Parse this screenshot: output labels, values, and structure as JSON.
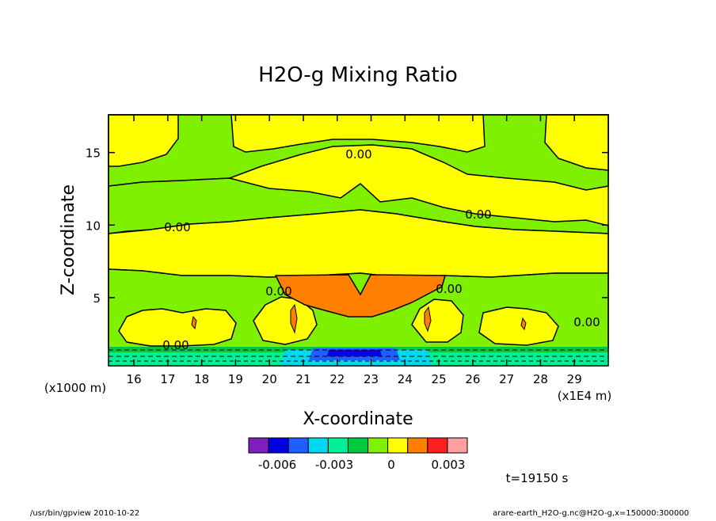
{
  "chart_data": {
    "type": "heatmap",
    "title": "H2O-g Mixing Ratio",
    "xlabel": "X-coordinate",
    "ylabel": "Z-coordinate",
    "x_unit_label": "(x1E4 m)",
    "y_unit_label": "(x1000 m)",
    "xlim": [
      15.25,
      30.0
    ],
    "ylim": [
      0.3,
      17.6
    ],
    "x_ticks": [
      "16",
      "17",
      "18",
      "19",
      "20",
      "21",
      "22",
      "23",
      "24",
      "25",
      "26",
      "27",
      "28",
      "29"
    ],
    "y_ticks": [
      "5",
      "10",
      "15"
    ],
    "x_tick_values": [
      16,
      17,
      18,
      19,
      20,
      21,
      22,
      23,
      24,
      25,
      26,
      27,
      28,
      29
    ],
    "y_tick_values": [
      5,
      10,
      15
    ],
    "contour_labels": [
      "0.00",
      "0.00",
      "0.00",
      "0.00",
      "0.00",
      "0.00",
      "0.00"
    ],
    "time_label": "t=19150 s",
    "colorbar": {
      "tick_labels": [
        "-0.006",
        "-0.003",
        "0",
        "0.003"
      ],
      "tick_values": [
        -0.006,
        -0.003,
        0,
        0.003
      ],
      "colors": [
        "#7f1fbf",
        "#0000e0",
        "#1f5fff",
        "#00d8f0",
        "#00f098",
        "#00c840",
        "#7ff000",
        "#ffff00",
        "#ff7f00",
        "#ff1f1f",
        "#ff9f9f"
      ]
    },
    "bands": {
      "upper_yellow": "#ffff00",
      "green": "#7ff000",
      "orange": "#ff7f00"
    }
  },
  "footer": {
    "left": "/usr/bin/gpview  2010-10-22",
    "right": "arare-earth_H2O-g.nc@H2O-g,x=150000:300000"
  }
}
